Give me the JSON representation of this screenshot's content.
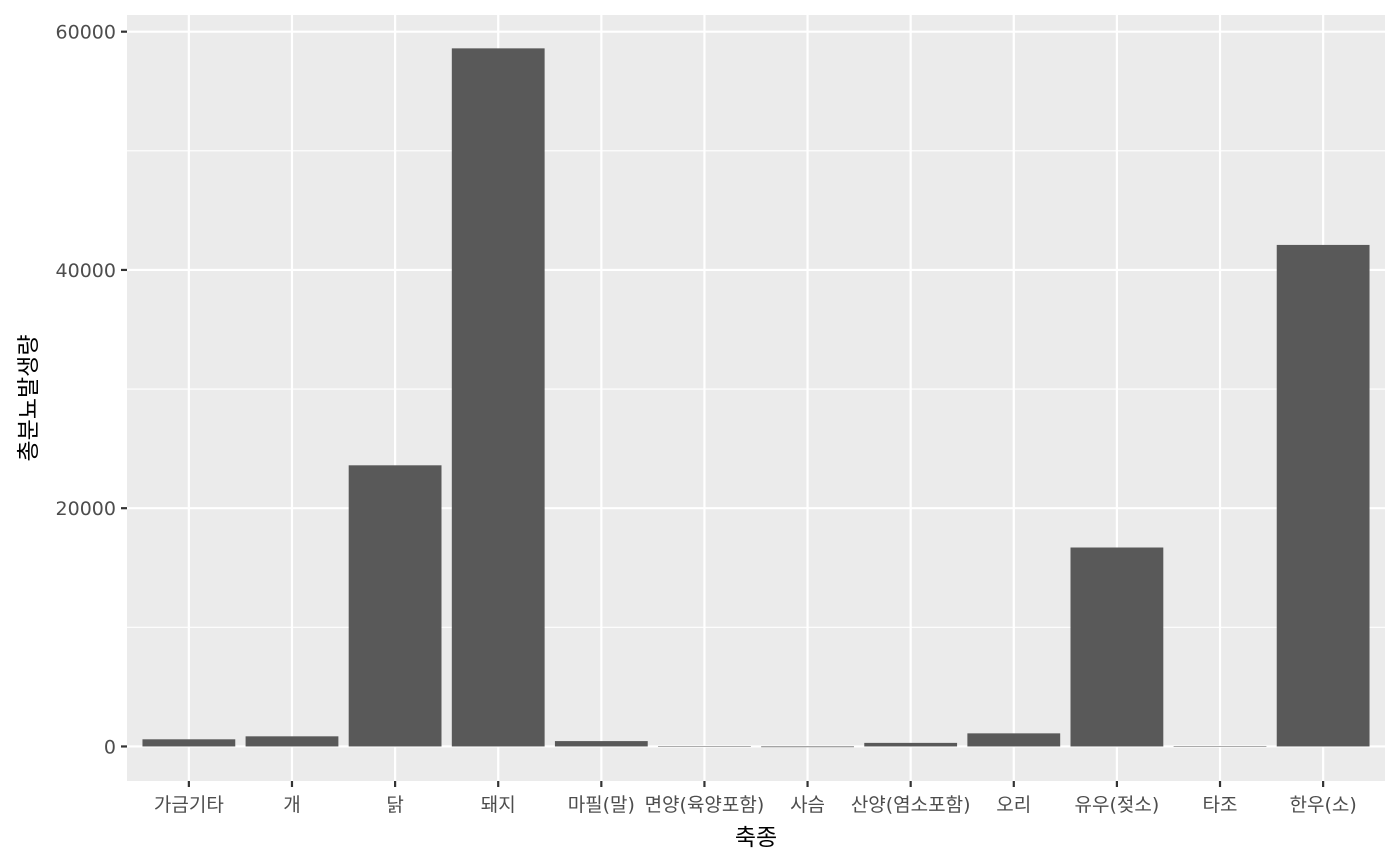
{
  "chart_data": {
    "type": "bar",
    "title": "",
    "xlabel": "축종",
    "ylabel": "총분뇨발생량",
    "categories": [
      "가금기타",
      "개",
      "닭",
      "돼지",
      "마필(말)",
      "면양(육양포함)",
      "사슴",
      "산양(염소포함)",
      "오리",
      "유우(젖소)",
      "타조",
      "한우(소)"
    ],
    "values": [
      600,
      850,
      23600,
      58600,
      450,
      30,
      -60,
      300,
      1100,
      16700,
      10,
      42100
    ],
    "ylim": [
      -2900,
      61400
    ],
    "yticks": [
      0,
      20000,
      40000,
      60000
    ],
    "ytick_labels": [
      "0",
      "20000",
      "40000",
      "60000"
    ],
    "grid": true,
    "legend": "none",
    "colors": {
      "panel": "#EBEBEB",
      "grid": "#FFFFFF",
      "bar": "#595959",
      "tick": "#333333",
      "tick_label": "#4D4D4D"
    }
  }
}
